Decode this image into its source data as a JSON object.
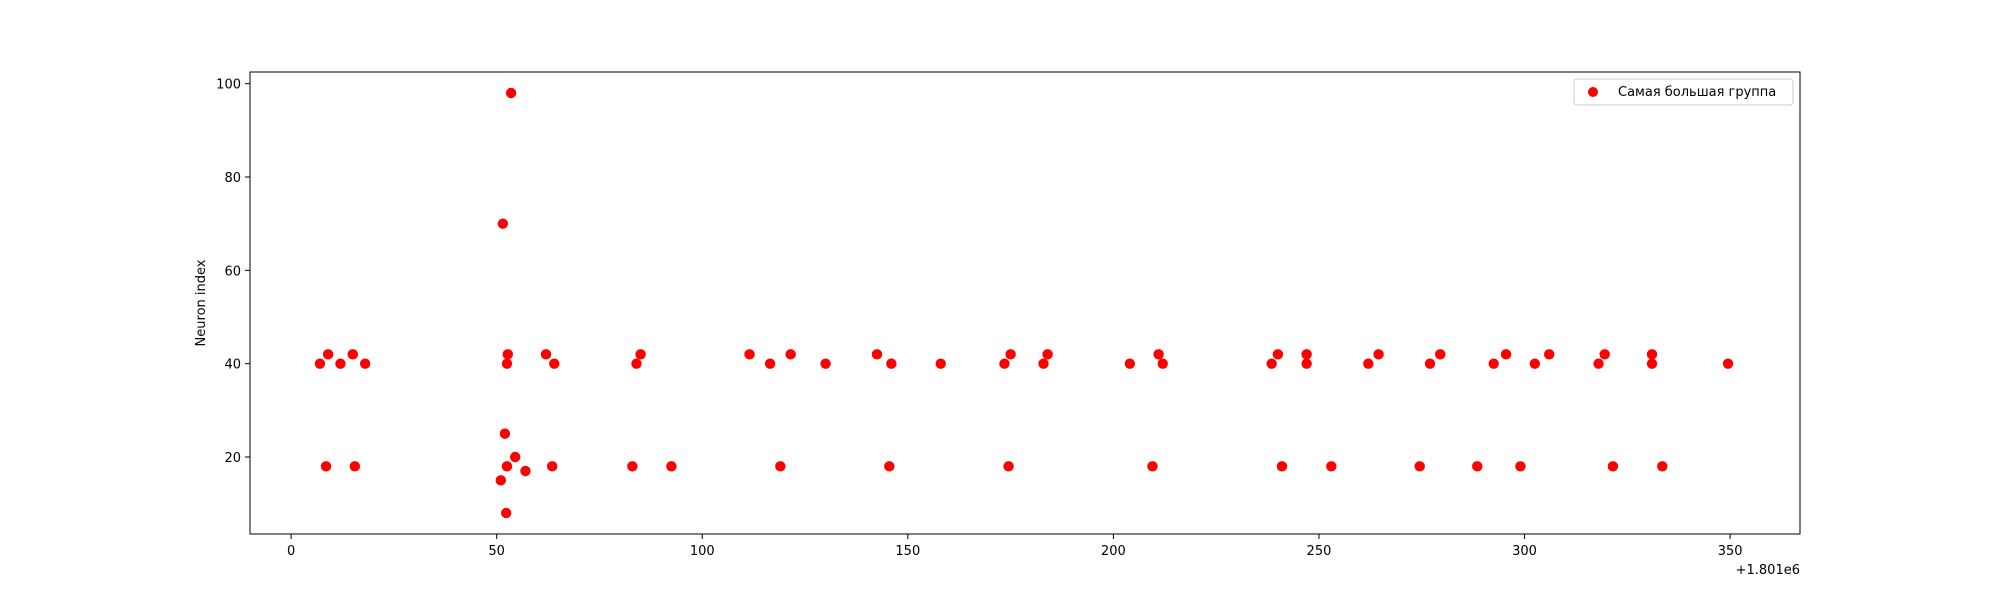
{
  "chart_data": {
    "type": "scatter",
    "xlabel": "",
    "ylabel": "Neuron index",
    "x_offset_label": "+1.801e6",
    "x_ticks": [
      0,
      50,
      100,
      150,
      200,
      250,
      300,
      350
    ],
    "y_ticks": [
      20,
      40,
      60,
      80,
      100
    ],
    "xlim": [
      1800990,
      1801367
    ],
    "ylim": [
      3.5,
      102.5
    ],
    "grid": false,
    "legend_position": "upper right",
    "series": [
      {
        "name": "Самая большая группа",
        "color": "#ff0000",
        "points": [
          [
            1801007,
            40
          ],
          [
            1801008.5,
            18
          ],
          [
            1801009,
            42
          ],
          [
            1801012,
            40
          ],
          [
            1801015,
            42
          ],
          [
            1801015.5,
            18
          ],
          [
            1801018,
            40
          ],
          [
            1801051,
            15
          ],
          [
            1801051.5,
            70
          ],
          [
            1801052,
            25
          ],
          [
            1801052.3,
            8
          ],
          [
            1801052.5,
            18
          ],
          [
            1801052.5,
            40
          ],
          [
            1801052.7,
            42
          ],
          [
            1801053.5,
            98
          ],
          [
            1801054.5,
            20
          ],
          [
            1801057,
            17
          ],
          [
            1801062,
            42
          ],
          [
            1801063.5,
            18
          ],
          [
            1801064,
            40
          ],
          [
            1801083,
            18
          ],
          [
            1801084,
            40
          ],
          [
            1801085,
            42
          ],
          [
            1801092.5,
            18
          ],
          [
            1801111.5,
            42
          ],
          [
            1801116.5,
            40
          ],
          [
            1801119,
            18
          ],
          [
            1801121.5,
            42
          ],
          [
            1801130,
            40
          ],
          [
            1801142.5,
            42
          ],
          [
            1801145.5,
            18
          ],
          [
            1801146,
            40
          ],
          [
            1801158,
            40
          ],
          [
            1801173.5,
            40
          ],
          [
            1801174.5,
            18
          ],
          [
            1801175,
            42
          ],
          [
            1801183,
            40
          ],
          [
            1801184,
            42
          ],
          [
            1801204,
            40
          ],
          [
            1801209.5,
            18
          ],
          [
            1801211,
            42
          ],
          [
            1801212,
            40
          ],
          [
            1801238.5,
            40
          ],
          [
            1801240,
            42
          ],
          [
            1801241,
            18
          ],
          [
            1801247,
            42
          ],
          [
            1801247,
            40
          ],
          [
            1801253,
            18
          ],
          [
            1801262,
            40
          ],
          [
            1801264.5,
            42
          ],
          [
            1801274.5,
            18
          ],
          [
            1801277,
            40
          ],
          [
            1801279.5,
            42
          ],
          [
            1801288.5,
            18
          ],
          [
            1801292.5,
            40
          ],
          [
            1801295.5,
            42
          ],
          [
            1801299,
            18
          ],
          [
            1801302.5,
            40
          ],
          [
            1801306,
            42
          ],
          [
            1801318,
            40
          ],
          [
            1801319.5,
            42
          ],
          [
            1801321.5,
            18
          ],
          [
            1801331,
            40
          ],
          [
            1801331,
            42
          ],
          [
            1801333.5,
            18
          ],
          [
            1801349.5,
            40
          ]
        ]
      }
    ]
  }
}
